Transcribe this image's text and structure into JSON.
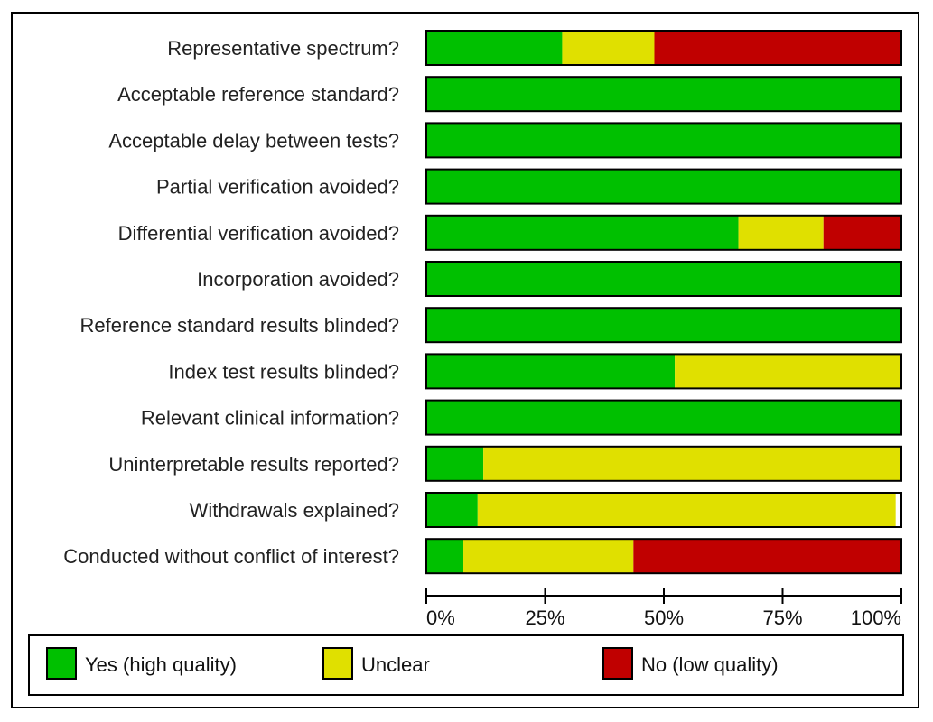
{
  "chart_data": {
    "type": "bar",
    "orientation": "horizontal",
    "stacked": true,
    "categories": [
      "Representative spectrum?",
      "Acceptable reference standard?",
      "Acceptable delay between tests?",
      "Partial verification avoided?",
      "Differential verification avoided?",
      "Incorporation avoided?",
      "Reference standard results blinded?",
      "Index test results blinded?",
      "Relevant clinical information?",
      "Uninterpretable results reported?",
      "Withdrawals explained?",
      "Conducted without conflict of interest?"
    ],
    "series": [
      {
        "name": "Yes (high quality)",
        "color": "#00c000",
        "values": [
          28.6,
          100,
          100,
          100,
          65.7,
          100,
          100,
          52.3,
          100,
          12,
          10.8,
          7.8
        ]
      },
      {
        "name": "Unclear",
        "color": "#e0e000",
        "values": [
          19.4,
          0,
          0,
          0,
          17.9,
          0,
          0,
          47.7,
          0,
          88,
          88,
          35.8
        ]
      },
      {
        "name": "No (low quality)",
        "color": "#c00000",
        "values": [
          52,
          0,
          0,
          0,
          16.4,
          0,
          0,
          0,
          0,
          0,
          0,
          56.4
        ]
      }
    ],
    "xlim": [
      0,
      100
    ],
    "xticks": [
      "0%",
      "25%",
      "50%",
      "75%",
      "100%"
    ],
    "grid": false,
    "legend": "bottom"
  }
}
